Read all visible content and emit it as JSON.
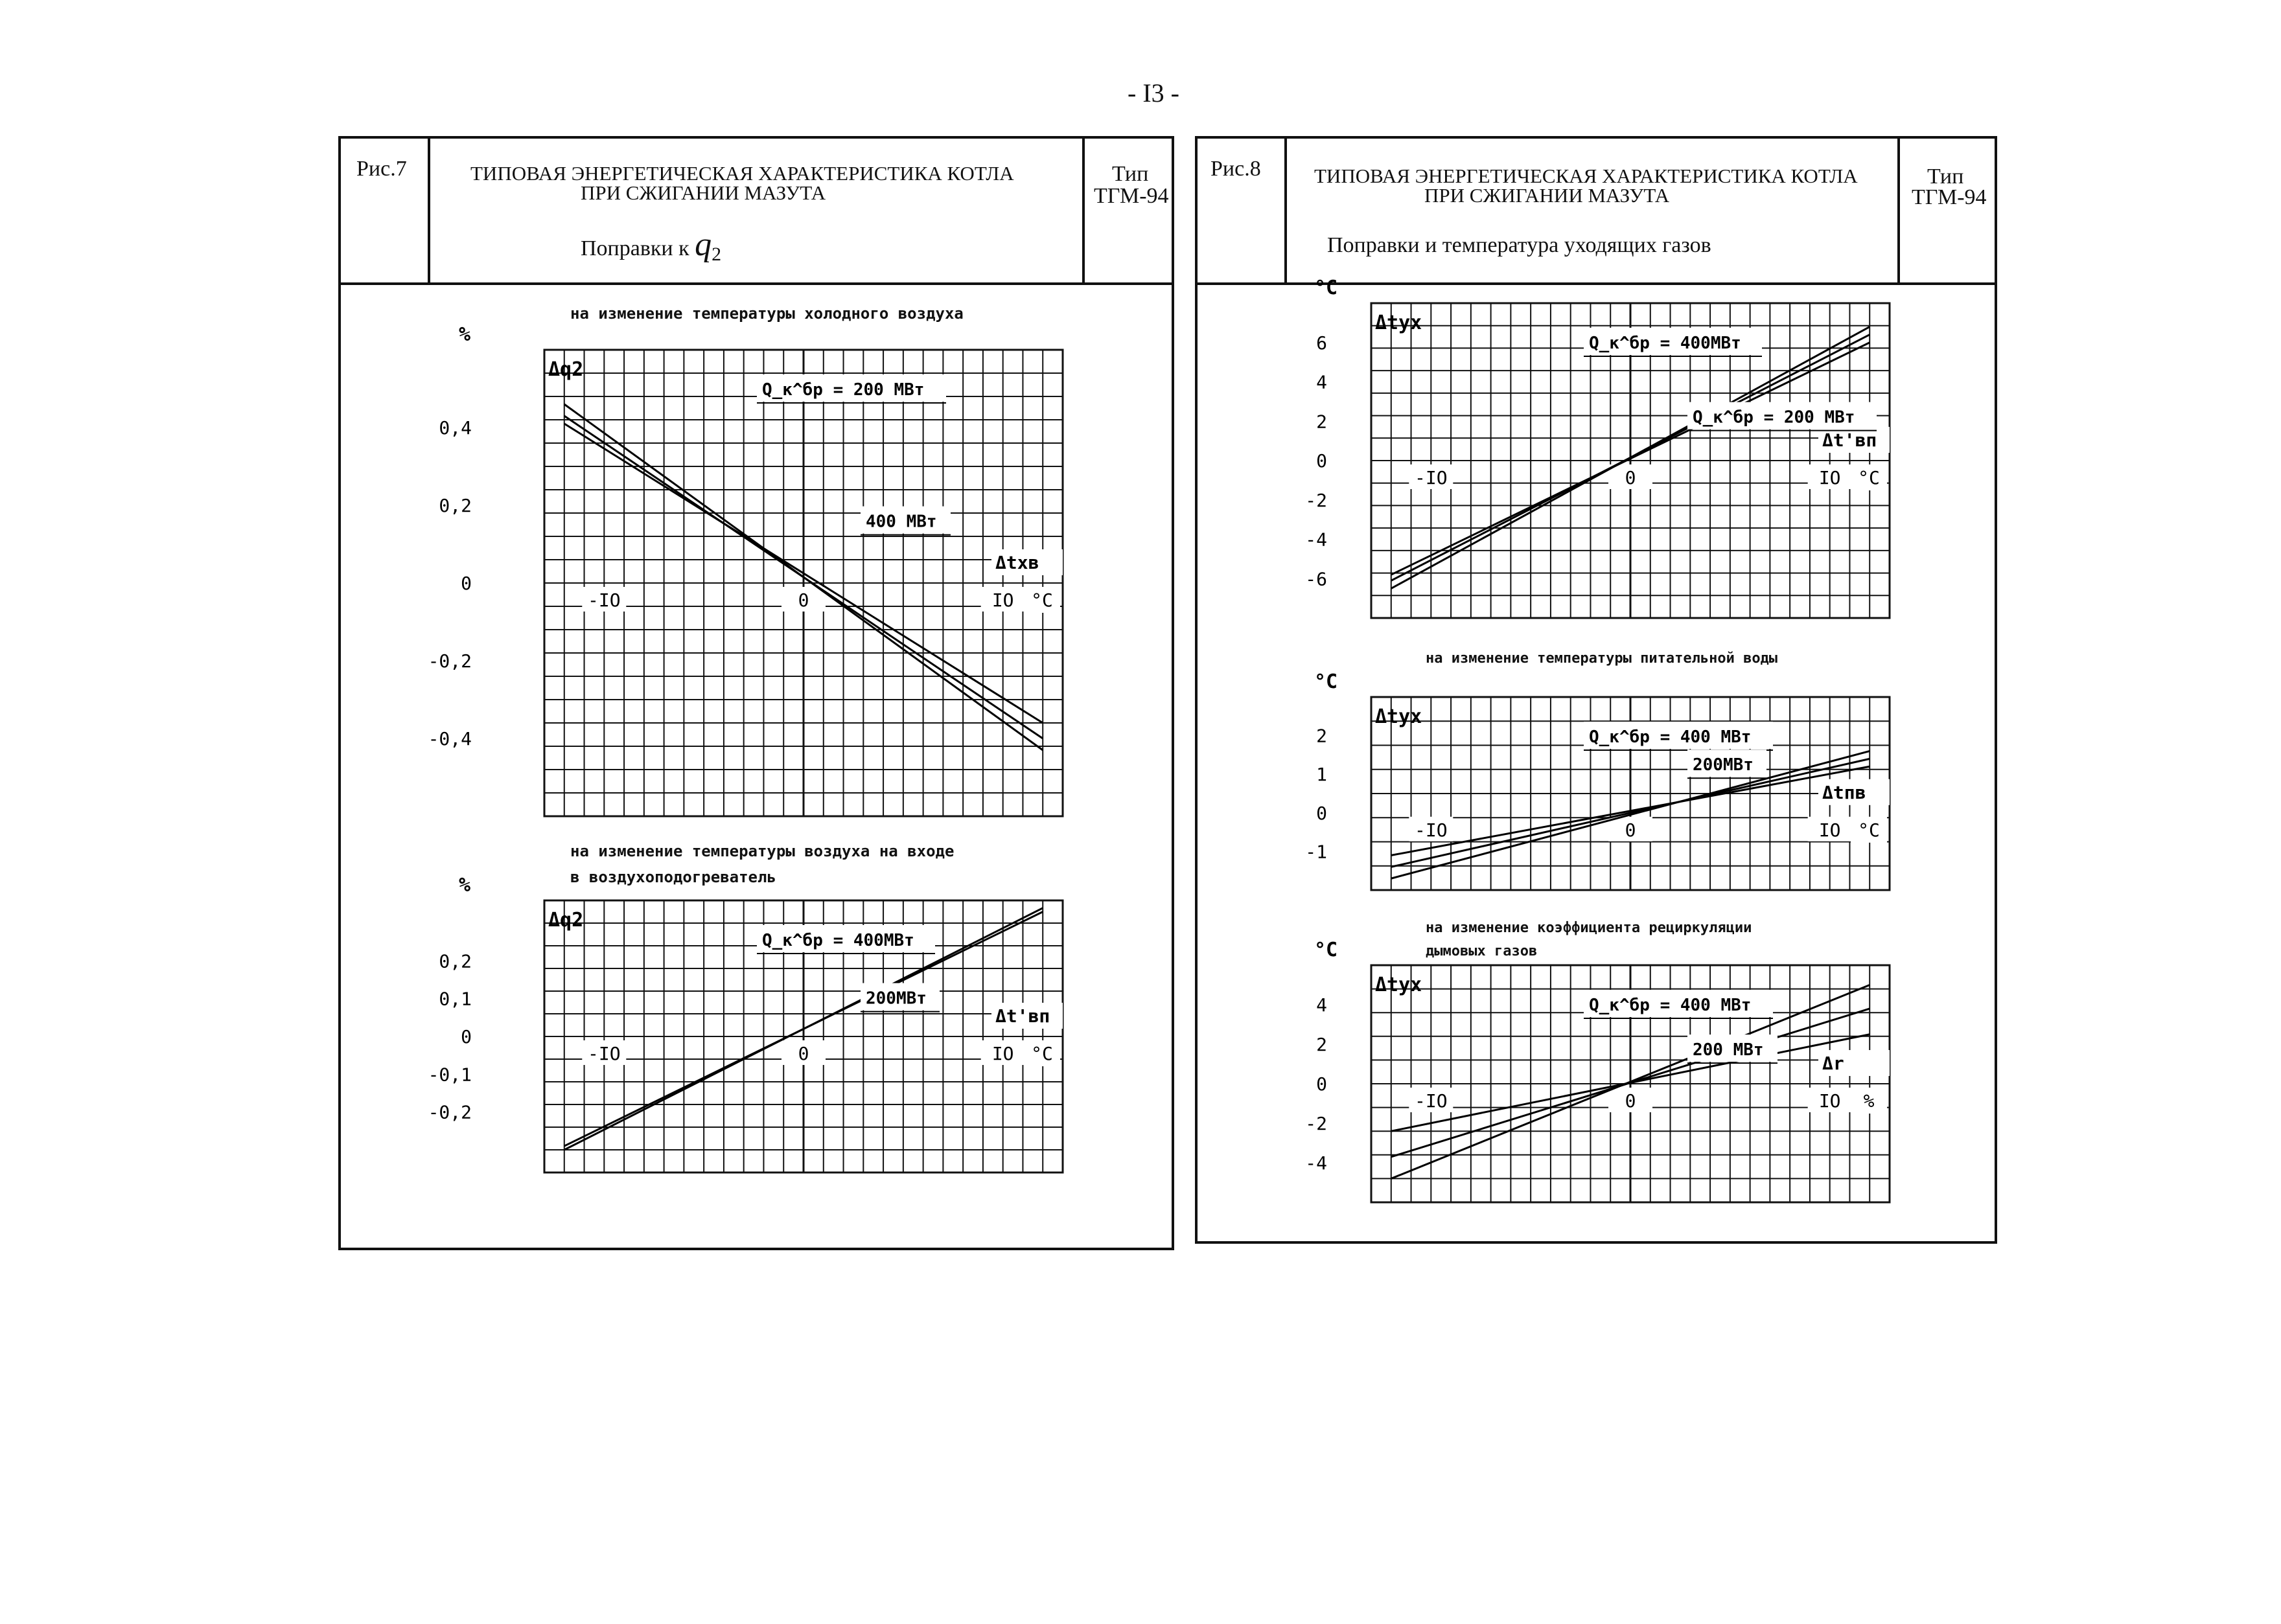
{
  "page_number": "- I3 -",
  "fig7": {
    "label": "Рис.7",
    "title_line1": "ТИПОВАЯ ЭНЕРГЕТИЧЕСКАЯ ХАРАКТЕРИСТИКА КОТЛА",
    "title_line2": "ПРИ СЖИГАНИИ МАЗУТА",
    "subtitle": "Поправки к",
    "subtitle_symbol": "q",
    "subtitle_sub": "2",
    "type_label": "Тип",
    "type_value": "ТГМ-94"
  },
  "fig8": {
    "label": "Рис.8",
    "title_line1": "ТИПОВАЯ ЭНЕРГЕТИЧЕСКАЯ ХАРАКТЕРИСТИКА КОТЛА",
    "title_line2": "ПРИ СЖИГАНИИ МАЗУТА",
    "subtitle": "Поправки и температура уходящих газов",
    "type_label": "Тип",
    "type_value": "ТГМ-94"
  },
  "chart_data": [
    {
      "type": "line",
      "caption": "на изменение температуры холодного воздуха",
      "unit_label": "%",
      "ylabel": "Δq2",
      "xlabel": "Δtхв",
      "x_unit": "°C",
      "x_ticks": [
        "-IO",
        "0",
        "IO"
      ],
      "y_ticks": [
        "0,4",
        "0,2",
        "0",
        "-0,2",
        "-0,4"
      ],
      "xlim": [
        -13,
        13
      ],
      "ylim": [
        -0.6,
        0.6
      ],
      "series": [
        {
          "name": "200 МВт",
          "x": [
            -12,
            12
          ],
          "y": [
            0.46,
            -0.43
          ]
        },
        {
          "name": "",
          "x": [
            -12,
            12
          ],
          "y": [
            0.43,
            -0.4
          ]
        },
        {
          "name": "400 МВт",
          "x": [
            -12,
            12
          ],
          "y": [
            0.41,
            -0.36
          ]
        }
      ],
      "annotations": [
        "Q_к^бр = 200 МВт",
        "400 МВт"
      ]
    },
    {
      "type": "line",
      "caption": "на изменение температуры воздуха на входе в воздухоподогреватель",
      "unit_label": "%",
      "ylabel": "Δq2",
      "xlabel": "Δt'вп",
      "x_unit": "°C",
      "x_ticks": [
        "-IO",
        "0",
        "IO"
      ],
      "y_ticks": [
        "0,2",
        "0,1",
        "0",
        "-0,1",
        "-0,2"
      ],
      "xlim": [
        -13,
        13
      ],
      "ylim": [
        -0.36,
        0.36
      ],
      "series": [
        {
          "name": "400МВт",
          "x": [
            -12,
            12
          ],
          "y": [
            -0.3,
            0.34
          ]
        },
        {
          "name": "200МВт",
          "x": [
            -12,
            12
          ],
          "y": [
            -0.29,
            0.33
          ]
        }
      ],
      "annotations": [
        "Q_к^бр = 400МВт",
        "200МВт"
      ]
    },
    {
      "type": "line",
      "caption": "",
      "unit_label": "°C",
      "ylabel": "Δtух",
      "xlabel": "Δt'вп",
      "x_unit": "°C",
      "x_ticks": [
        "-IO",
        "0",
        "IO"
      ],
      "y_ticks": [
        "6",
        "4",
        "2",
        "0",
        "-2",
        "-4",
        "-6"
      ],
      "xlim": [
        -13,
        13
      ],
      "ylim": [
        -8,
        8
      ],
      "series": [
        {
          "name": "400МВт",
          "x": [
            -12,
            12
          ],
          "y": [
            -6.5,
            6.8
          ]
        },
        {
          "name": "",
          "x": [
            -12,
            12
          ],
          "y": [
            -6.1,
            6.4
          ]
        },
        {
          "name": "200 МВт",
          "x": [
            -12,
            12
          ],
          "y": [
            -5.8,
            6.0
          ]
        }
      ],
      "annotations": [
        "Q_к^бр = 400МВт",
        "Q_к^бр = 200 МВт"
      ]
    },
    {
      "type": "line",
      "caption": "на изменение температуры питательной воды",
      "unit_label": "°C",
      "ylabel": "Δtух",
      "xlabel": "Δtпв",
      "x_unit": "°C",
      "x_ticks": [
        "-IO",
        "0",
        "IO"
      ],
      "y_ticks": [
        "2",
        "1",
        "0",
        "-1"
      ],
      "xlim": [
        -13,
        13
      ],
      "ylim": [
        -2,
        3
      ],
      "series": [
        {
          "name": "400 МВт",
          "x": [
            -12,
            12
          ],
          "y": [
            -1.7,
            1.6
          ]
        },
        {
          "name": "",
          "x": [
            -12,
            12
          ],
          "y": [
            -1.4,
            1.4
          ]
        },
        {
          "name": "200МВт",
          "x": [
            -12,
            12
          ],
          "y": [
            -1.1,
            1.2
          ]
        }
      ],
      "annotations": [
        "Q_к^бр = 400 МВт",
        "200МВт"
      ]
    },
    {
      "type": "line",
      "caption": "на изменение коэффициента рециркуляции дымовых газов",
      "unit_label": "°C",
      "ylabel": "Δtух",
      "xlabel": "Δr",
      "x_unit": "%",
      "x_ticks": [
        "-IO",
        "0",
        "IO"
      ],
      "y_ticks": [
        "4",
        "2",
        "0",
        "-2",
        "-4"
      ],
      "xlim": [
        -13,
        13
      ],
      "ylim": [
        -6,
        6
      ],
      "series": [
        {
          "name": "400 МВт",
          "x": [
            -12,
            12
          ],
          "y": [
            -4.8,
            5.0
          ]
        },
        {
          "name": "",
          "x": [
            -12,
            12
          ],
          "y": [
            -3.7,
            3.8
          ]
        },
        {
          "name": "200 МВт",
          "x": [
            -12,
            12
          ],
          "y": [
            -2.4,
            2.5
          ]
        }
      ],
      "annotations": [
        "Q_к^бр = 400 МВт",
        "200 МВт"
      ]
    }
  ]
}
